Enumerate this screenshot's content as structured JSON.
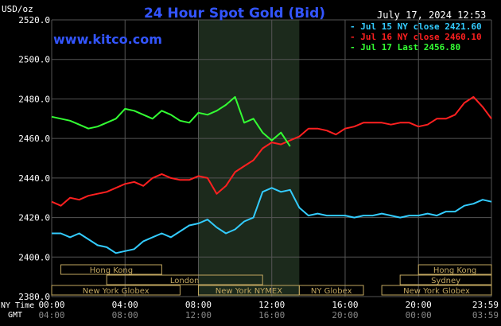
{
  "header": {
    "title": "24 Hour Spot Gold (Bid)",
    "unit": "USD/oz",
    "website": "www.kitco.com",
    "datetime": "July 17, 2024 12:53"
  },
  "legend": [
    {
      "text": "Jul 15 NY close 2421.60",
      "color": "#33ccff"
    },
    {
      "text": "Jul 16 NY close 2460.10",
      "color": "#ff2020"
    },
    {
      "text": "Jul 17 Last 2456.80",
      "color": "#33ff33"
    }
  ],
  "axes": {
    "x_row_label_ny": "NY Time",
    "x_row_label_gmt": "GMT",
    "ny_ticks": [
      "00:00",
      "04:00",
      "08:00",
      "12:00",
      "16:00",
      "20:00",
      "23:59"
    ],
    "gmt_ticks": [
      "04:00",
      "08:00",
      "12:00",
      "16:00",
      "20:00",
      "00:00",
      "03:59"
    ],
    "y_ticks": [
      "2520.0",
      "2500.0",
      "2480.0",
      "2460.0",
      "2440.0",
      "2420.0",
      "2400.0",
      "2380.0"
    ]
  },
  "markets": [
    {
      "label": "Hong Kong",
      "start": 0.5,
      "end": 6.0
    },
    {
      "label": "London",
      "start": 3.0,
      "end": 11.5
    },
    {
      "label": "New York Globex",
      "start": 0.0,
      "end": 7.0
    },
    {
      "label": "New York NYMEX",
      "start": 8.0,
      "end": 13.5
    },
    {
      "label": "NY Globex",
      "start": 13.5,
      "end": 17.0
    },
    {
      "label": "Hong Kong",
      "start": 20.0,
      "end": 23.98
    },
    {
      "label": "Sydney",
      "start": 19.0,
      "end": 23.98
    },
    {
      "label": "New York Globex",
      "start": 18.0,
      "end": 23.98
    }
  ],
  "colors": {
    "background": "#000000",
    "title": "#3355ff",
    "website": "#3355ff",
    "grid": "#555555",
    "axis_text": "#ffffff",
    "gmt_text": "#888888",
    "highlight": "#1c2a1c",
    "market_bar": "#c2a760"
  },
  "chart_data": {
    "type": "line",
    "x_unit": "hours (NY time)",
    "xlim": [
      0,
      23.98
    ],
    "ylim": [
      2380,
      2520
    ],
    "grid": true,
    "legend_position": "top-right",
    "highlight_range": [
      8.0,
      13.5
    ],
    "series": [
      {
        "name": "Jul 15 NY close 2421.60",
        "color": "#33ccff",
        "x": [
          0,
          0.5,
          1,
          1.5,
          2,
          2.5,
          3,
          3.5,
          4,
          4.5,
          5,
          5.5,
          6,
          6.5,
          7,
          7.5,
          8,
          8.5,
          9,
          9.5,
          10,
          10.5,
          11,
          11.5,
          12,
          12.5,
          13,
          13.5,
          14,
          14.5,
          15,
          15.5,
          16,
          16.5,
          17,
          17.5,
          18,
          18.5,
          19,
          19.5,
          20,
          20.5,
          21,
          21.5,
          22,
          22.5,
          23,
          23.5,
          23.98
        ],
        "y": [
          2412,
          2412,
          2410,
          2412,
          2409,
          2406,
          2405,
          2402,
          2403,
          2404,
          2408,
          2410,
          2412,
          2410,
          2413,
          2416,
          2417,
          2419,
          2415,
          2412,
          2414,
          2418,
          2420,
          2433,
          2435,
          2433,
          2434,
          2425,
          2421,
          2422,
          2421,
          2421,
          2421,
          2420,
          2421,
          2421,
          2422,
          2421,
          2420,
          2421,
          2421,
          2422,
          2421,
          2423,
          2423,
          2426,
          2427,
          2429,
          2428
        ]
      },
      {
        "name": "Jul 16 NY close 2460.10",
        "color": "#ff2020",
        "x": [
          0,
          0.5,
          1,
          1.5,
          2,
          2.5,
          3,
          3.5,
          4,
          4.5,
          5,
          5.5,
          6,
          6.5,
          7,
          7.5,
          8,
          8.5,
          9,
          9.5,
          10,
          10.5,
          11,
          11.5,
          12,
          12.5,
          13,
          13.5,
          14,
          14.5,
          15,
          15.5,
          16,
          16.5,
          17,
          17.5,
          18,
          18.5,
          19,
          19.5,
          20,
          20.5,
          21,
          21.5,
          22,
          22.5,
          23,
          23.5,
          23.98
        ],
        "y": [
          2428,
          2426,
          2430,
          2429,
          2431,
          2432,
          2433,
          2435,
          2437,
          2438,
          2436,
          2440,
          2442,
          2440,
          2439,
          2439,
          2441,
          2440,
          2432,
          2436,
          2443,
          2446,
          2449,
          2455,
          2458,
          2457,
          2459,
          2461,
          2465,
          2465,
          2464,
          2462,
          2465,
          2466,
          2468,
          2468,
          2468,
          2467,
          2468,
          2468,
          2466,
          2467,
          2470,
          2470,
          2472,
          2478,
          2481,
          2476,
          2470
        ]
      },
      {
        "name": "Jul 17 Last 2456.80",
        "color": "#33ff33",
        "x": [
          0,
          0.5,
          1,
          1.5,
          2,
          2.5,
          3,
          3.5,
          4,
          4.5,
          5,
          5.5,
          6,
          6.5,
          7,
          7.5,
          8,
          8.5,
          9,
          9.5,
          10,
          10.5,
          11,
          11.5,
          12,
          12.5,
          13
        ],
        "y": [
          2471,
          2470,
          2469,
          2467,
          2465,
          2466,
          2468,
          2470,
          2475,
          2474,
          2472,
          2470,
          2474,
          2472,
          2469,
          2468,
          2473,
          2472,
          2474,
          2477,
          2481,
          2468,
          2470,
          2463,
          2459,
          2463,
          2456
        ]
      }
    ]
  }
}
